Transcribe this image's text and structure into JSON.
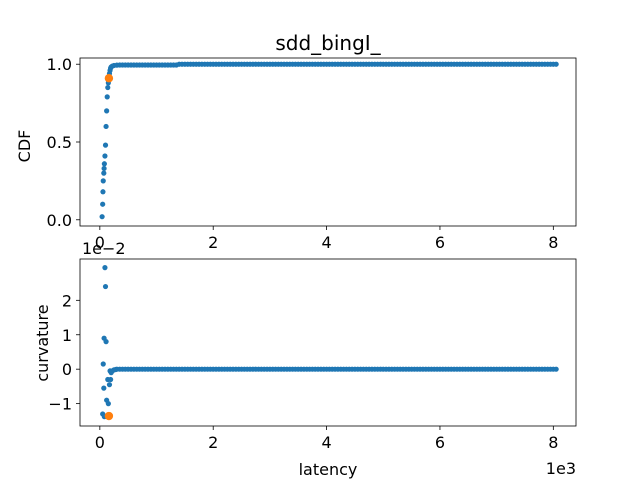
{
  "colors": {
    "series": "#1f77b4",
    "highlight": "#ff7f0e",
    "axis": "#000000",
    "background": "#ffffff"
  },
  "chart_data": [
    {
      "type": "scatter",
      "title": "sdd_bingI_",
      "xlabel": "",
      "ylabel": "CDF",
      "xlim": [
        -0.35,
        8.4
      ],
      "ylim": [
        -0.04,
        1.04
      ],
      "xticks": [
        0,
        2,
        4,
        6,
        8
      ],
      "xtick_labels": [
        "0",
        "2",
        "4",
        "6",
        "8"
      ],
      "yticks": [
        0.0,
        0.5,
        1.0
      ],
      "ytick_labels": [
        "0.0",
        "0.5",
        "1.0"
      ],
      "grid": false,
      "x_scale_label": "",
      "y_scale_label": "",
      "series": [
        {
          "x_lead": [
            0.04,
            0.05,
            0.055,
            0.06,
            0.07,
            0.075,
            0.08,
            0.09,
            0.1,
            0.11,
            0.12,
            0.13,
            0.14,
            0.15,
            0.16,
            0.17,
            0.18,
            0.19,
            0.2,
            0.22,
            0.25,
            0.3
          ],
          "y_lead": [
            0.02,
            0.1,
            0.18,
            0.25,
            0.3,
            0.33,
            0.36,
            0.41,
            0.48,
            0.6,
            0.7,
            0.79,
            0.85,
            0.88,
            0.91,
            0.94,
            0.96,
            0.975,
            0.982,
            0.988,
            0.992,
            0.994
          ],
          "x_fill_start": 0.35,
          "x_fill_end": 8.05,
          "x_fill_step": 0.05,
          "y_fill_until_1_4": 0.995,
          "y_fill_after": 1.0
        }
      ],
      "highlight_point": {
        "x": 0.16,
        "y": 0.91
      }
    },
    {
      "type": "scatter",
      "title": "",
      "xlabel": "latency",
      "ylabel": "curvature",
      "xlim": [
        -0.35,
        8.4
      ],
      "ylim": [
        -1.65,
        3.2
      ],
      "xticks": [
        0,
        2,
        4,
        6,
        8
      ],
      "xtick_labels": [
        "0",
        "2",
        "4",
        "6",
        "8"
      ],
      "yticks": [
        -1,
        0,
        1,
        2
      ],
      "ytick_labels": [
        "−1",
        "0",
        "1",
        "2"
      ],
      "grid": false,
      "x_scale_label": "1e3",
      "y_scale_label": "1e−2",
      "series": [
        {
          "x_lead": [
            0.05,
            0.06,
            0.07,
            0.075,
            0.08,
            0.09,
            0.1,
            0.11,
            0.12,
            0.13,
            0.14,
            0.15,
            0.16,
            0.17,
            0.18,
            0.19,
            0.2,
            0.22,
            0.25,
            0.28,
            0.3
          ],
          "y_lead": [
            -1.3,
            0.15,
            -0.55,
            0.9,
            -1.38,
            2.95,
            2.4,
            0.8,
            -0.9,
            -1.35,
            -0.3,
            -1.0,
            -1.35,
            -0.45,
            -0.05,
            -0.3,
            -0.1,
            -0.05,
            -0.02,
            -0.01,
            0.0
          ],
          "x_fill_start": 0.35,
          "x_fill_end": 8.05,
          "x_fill_step": 0.05,
          "y_fill_until_1_4": 0.0,
          "y_fill_after": 0.0
        }
      ],
      "highlight_point": {
        "x": 0.16,
        "y": -1.36
      }
    }
  ]
}
